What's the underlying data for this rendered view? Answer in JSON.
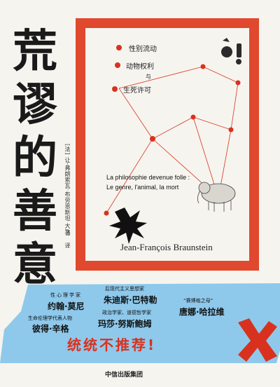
{
  "cover": {
    "title_chars": [
      "荒",
      "谬",
      "的",
      "善",
      "意"
    ],
    "author_cn": "[法] 让-弗朗索瓦·布劳恩斯坦",
    "author_role": "著",
    "translator": "大飞",
    "translator_role": "译",
    "topics": [
      "性别流动",
      "动物权利",
      "与",
      "生死许可"
    ],
    "fr_title_line1": "La philosophie devenue folle :",
    "fr_title_line2": "Le genre, l'animal, la mort",
    "author_latin": "Jean-François Braunstein",
    "accent_color": "#e0492d",
    "sticker_color": "#8ec9ec"
  },
  "sticker": {
    "items": [
      {
        "label": "性心理学家",
        "name": "约翰·莫尼"
      },
      {
        "label": "后现代主义思想家",
        "name": "朱迪斯·巴特勒"
      },
      {
        "label": "“赛博格之母”",
        "name": "唐娜·哈拉维"
      },
      {
        "label": "生命伦理学代表人物",
        "name": "彼得·辛格"
      },
      {
        "label": "政治学家、道德哲学家",
        "name": "玛莎·努斯鲍姆"
      }
    ],
    "slogan": "统统不推荐!"
  },
  "publisher": "中信出版集团"
}
